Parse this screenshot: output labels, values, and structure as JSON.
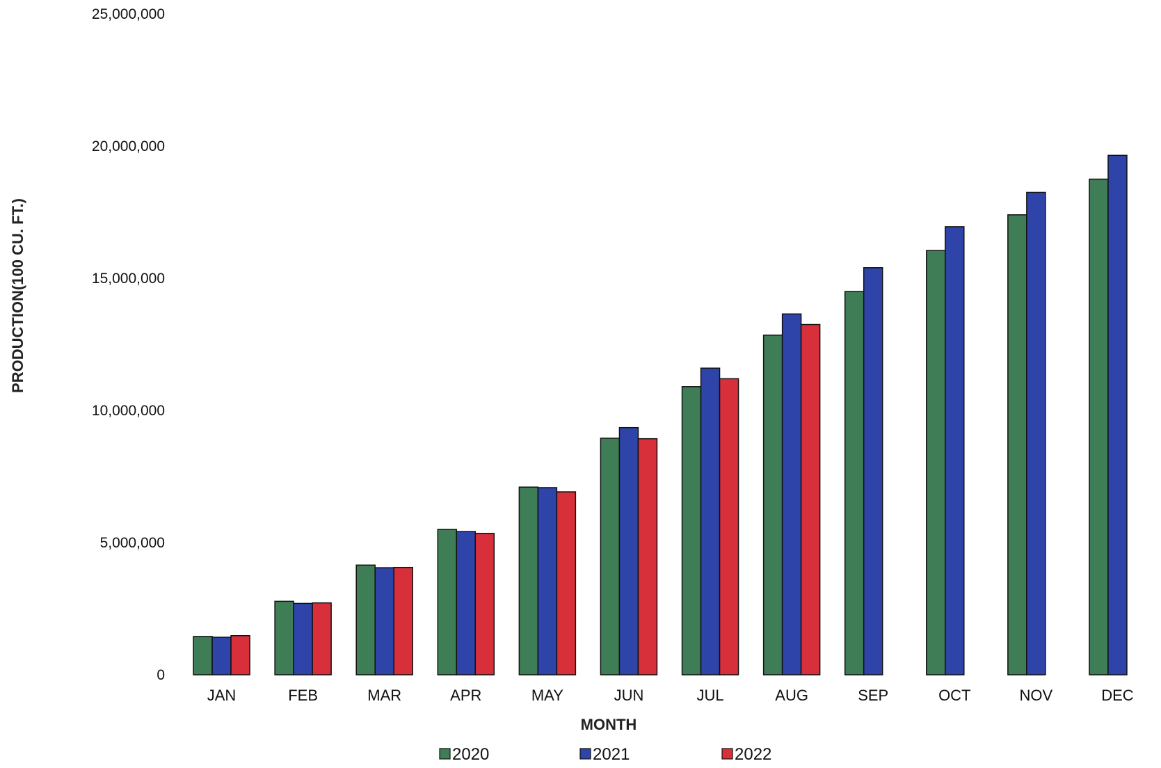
{
  "chart_data": {
    "type": "bar",
    "title": "",
    "xlabel": "MONTH",
    "ylabel": "PRODUCTION(100 CU. FT.)",
    "ylim": [
      0,
      25000000
    ],
    "yticks": [
      0,
      5000000,
      10000000,
      15000000,
      20000000,
      25000000
    ],
    "ytick_labels": [
      "0",
      "5,000,000",
      "10,000,000",
      "15,000,000",
      "20,000,000",
      "25,000,000"
    ],
    "grid": false,
    "legend_position": "bottom",
    "categories": [
      "JAN",
      "FEB",
      "MAR",
      "APR",
      "MAY",
      "JUN",
      "JUL",
      "AUG",
      "SEP",
      "OCT",
      "NOV",
      "DEC"
    ],
    "series": [
      {
        "name": "2020",
        "color": "#3e7d55",
        "values": [
          1450000,
          2780000,
          4150000,
          5500000,
          7100000,
          8950000,
          10900000,
          12850000,
          14500000,
          16050000,
          17400000,
          18750000
        ]
      },
      {
        "name": "2021",
        "color": "#2f44a8",
        "values": [
          1420000,
          2700000,
          4050000,
          5420000,
          7080000,
          9350000,
          11600000,
          13650000,
          15400000,
          16950000,
          18250000,
          19650000
        ]
      },
      {
        "name": "2022",
        "color": "#d8303a",
        "values": [
          1480000,
          2720000,
          4060000,
          5350000,
          6920000,
          8930000,
          11200000,
          13250000,
          null,
          null,
          null,
          null
        ]
      }
    ]
  }
}
